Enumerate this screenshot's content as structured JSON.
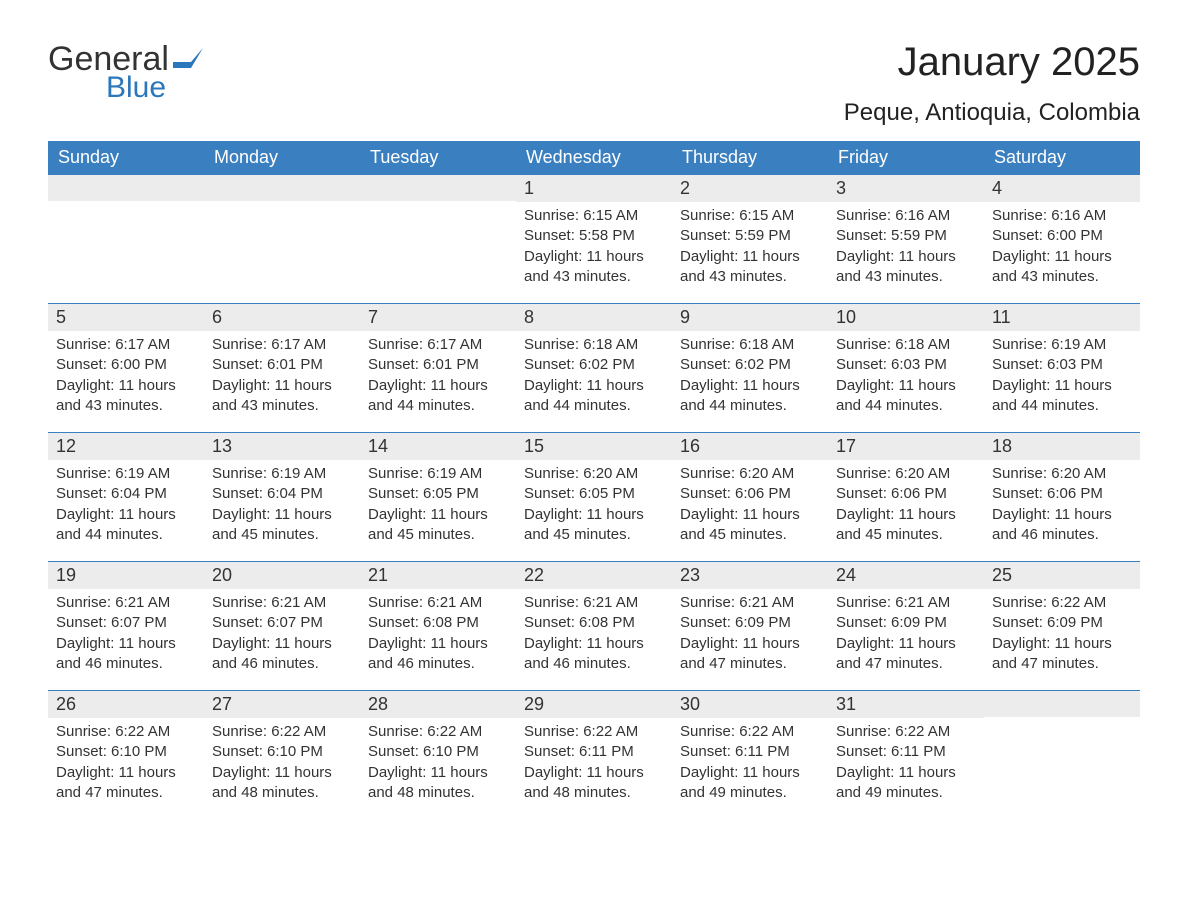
{
  "colors": {
    "header_bg": "#3a7fbf",
    "header_text": "#ffffff",
    "daynum_bg": "#ececec",
    "text": "#333333",
    "rule": "#3a7fbf",
    "logo_blue": "#2b77bb"
  },
  "logo": {
    "general": "General",
    "blue": "Blue"
  },
  "title": "January 2025",
  "location": "Peque, Antioquia, Colombia",
  "weekdays": [
    "Sunday",
    "Monday",
    "Tuesday",
    "Wednesday",
    "Thursday",
    "Friday",
    "Saturday"
  ],
  "layout": {
    "columns": 7,
    "rows": 5,
    "first_day_column": 3
  },
  "days": [
    {
      "n": 1,
      "sunrise": "Sunrise: 6:15 AM",
      "sunset": "Sunset: 5:58 PM",
      "dl1": "Daylight: 11 hours",
      "dl2": "and 43 minutes."
    },
    {
      "n": 2,
      "sunrise": "Sunrise: 6:15 AM",
      "sunset": "Sunset: 5:59 PM",
      "dl1": "Daylight: 11 hours",
      "dl2": "and 43 minutes."
    },
    {
      "n": 3,
      "sunrise": "Sunrise: 6:16 AM",
      "sunset": "Sunset: 5:59 PM",
      "dl1": "Daylight: 11 hours",
      "dl2": "and 43 minutes."
    },
    {
      "n": 4,
      "sunrise": "Sunrise: 6:16 AM",
      "sunset": "Sunset: 6:00 PM",
      "dl1": "Daylight: 11 hours",
      "dl2": "and 43 minutes."
    },
    {
      "n": 5,
      "sunrise": "Sunrise: 6:17 AM",
      "sunset": "Sunset: 6:00 PM",
      "dl1": "Daylight: 11 hours",
      "dl2": "and 43 minutes."
    },
    {
      "n": 6,
      "sunrise": "Sunrise: 6:17 AM",
      "sunset": "Sunset: 6:01 PM",
      "dl1": "Daylight: 11 hours",
      "dl2": "and 43 minutes."
    },
    {
      "n": 7,
      "sunrise": "Sunrise: 6:17 AM",
      "sunset": "Sunset: 6:01 PM",
      "dl1": "Daylight: 11 hours",
      "dl2": "and 44 minutes."
    },
    {
      "n": 8,
      "sunrise": "Sunrise: 6:18 AM",
      "sunset": "Sunset: 6:02 PM",
      "dl1": "Daylight: 11 hours",
      "dl2": "and 44 minutes."
    },
    {
      "n": 9,
      "sunrise": "Sunrise: 6:18 AM",
      "sunset": "Sunset: 6:02 PM",
      "dl1": "Daylight: 11 hours",
      "dl2": "and 44 minutes."
    },
    {
      "n": 10,
      "sunrise": "Sunrise: 6:18 AM",
      "sunset": "Sunset: 6:03 PM",
      "dl1": "Daylight: 11 hours",
      "dl2": "and 44 minutes."
    },
    {
      "n": 11,
      "sunrise": "Sunrise: 6:19 AM",
      "sunset": "Sunset: 6:03 PM",
      "dl1": "Daylight: 11 hours",
      "dl2": "and 44 minutes."
    },
    {
      "n": 12,
      "sunrise": "Sunrise: 6:19 AM",
      "sunset": "Sunset: 6:04 PM",
      "dl1": "Daylight: 11 hours",
      "dl2": "and 44 minutes."
    },
    {
      "n": 13,
      "sunrise": "Sunrise: 6:19 AM",
      "sunset": "Sunset: 6:04 PM",
      "dl1": "Daylight: 11 hours",
      "dl2": "and 45 minutes."
    },
    {
      "n": 14,
      "sunrise": "Sunrise: 6:19 AM",
      "sunset": "Sunset: 6:05 PM",
      "dl1": "Daylight: 11 hours",
      "dl2": "and 45 minutes."
    },
    {
      "n": 15,
      "sunrise": "Sunrise: 6:20 AM",
      "sunset": "Sunset: 6:05 PM",
      "dl1": "Daylight: 11 hours",
      "dl2": "and 45 minutes."
    },
    {
      "n": 16,
      "sunrise": "Sunrise: 6:20 AM",
      "sunset": "Sunset: 6:06 PM",
      "dl1": "Daylight: 11 hours",
      "dl2": "and 45 minutes."
    },
    {
      "n": 17,
      "sunrise": "Sunrise: 6:20 AM",
      "sunset": "Sunset: 6:06 PM",
      "dl1": "Daylight: 11 hours",
      "dl2": "and 45 minutes."
    },
    {
      "n": 18,
      "sunrise": "Sunrise: 6:20 AM",
      "sunset": "Sunset: 6:06 PM",
      "dl1": "Daylight: 11 hours",
      "dl2": "and 46 minutes."
    },
    {
      "n": 19,
      "sunrise": "Sunrise: 6:21 AM",
      "sunset": "Sunset: 6:07 PM",
      "dl1": "Daylight: 11 hours",
      "dl2": "and 46 minutes."
    },
    {
      "n": 20,
      "sunrise": "Sunrise: 6:21 AM",
      "sunset": "Sunset: 6:07 PM",
      "dl1": "Daylight: 11 hours",
      "dl2": "and 46 minutes."
    },
    {
      "n": 21,
      "sunrise": "Sunrise: 6:21 AM",
      "sunset": "Sunset: 6:08 PM",
      "dl1": "Daylight: 11 hours",
      "dl2": "and 46 minutes."
    },
    {
      "n": 22,
      "sunrise": "Sunrise: 6:21 AM",
      "sunset": "Sunset: 6:08 PM",
      "dl1": "Daylight: 11 hours",
      "dl2": "and 46 minutes."
    },
    {
      "n": 23,
      "sunrise": "Sunrise: 6:21 AM",
      "sunset": "Sunset: 6:09 PM",
      "dl1": "Daylight: 11 hours",
      "dl2": "and 47 minutes."
    },
    {
      "n": 24,
      "sunrise": "Sunrise: 6:21 AM",
      "sunset": "Sunset: 6:09 PM",
      "dl1": "Daylight: 11 hours",
      "dl2": "and 47 minutes."
    },
    {
      "n": 25,
      "sunrise": "Sunrise: 6:22 AM",
      "sunset": "Sunset: 6:09 PM",
      "dl1": "Daylight: 11 hours",
      "dl2": "and 47 minutes."
    },
    {
      "n": 26,
      "sunrise": "Sunrise: 6:22 AM",
      "sunset": "Sunset: 6:10 PM",
      "dl1": "Daylight: 11 hours",
      "dl2": "and 47 minutes."
    },
    {
      "n": 27,
      "sunrise": "Sunrise: 6:22 AM",
      "sunset": "Sunset: 6:10 PM",
      "dl1": "Daylight: 11 hours",
      "dl2": "and 48 minutes."
    },
    {
      "n": 28,
      "sunrise": "Sunrise: 6:22 AM",
      "sunset": "Sunset: 6:10 PM",
      "dl1": "Daylight: 11 hours",
      "dl2": "and 48 minutes."
    },
    {
      "n": 29,
      "sunrise": "Sunrise: 6:22 AM",
      "sunset": "Sunset: 6:11 PM",
      "dl1": "Daylight: 11 hours",
      "dl2": "and 48 minutes."
    },
    {
      "n": 30,
      "sunrise": "Sunrise: 6:22 AM",
      "sunset": "Sunset: 6:11 PM",
      "dl1": "Daylight: 11 hours",
      "dl2": "and 49 minutes."
    },
    {
      "n": 31,
      "sunrise": "Sunrise: 6:22 AM",
      "sunset": "Sunset: 6:11 PM",
      "dl1": "Daylight: 11 hours",
      "dl2": "and 49 minutes."
    }
  ]
}
